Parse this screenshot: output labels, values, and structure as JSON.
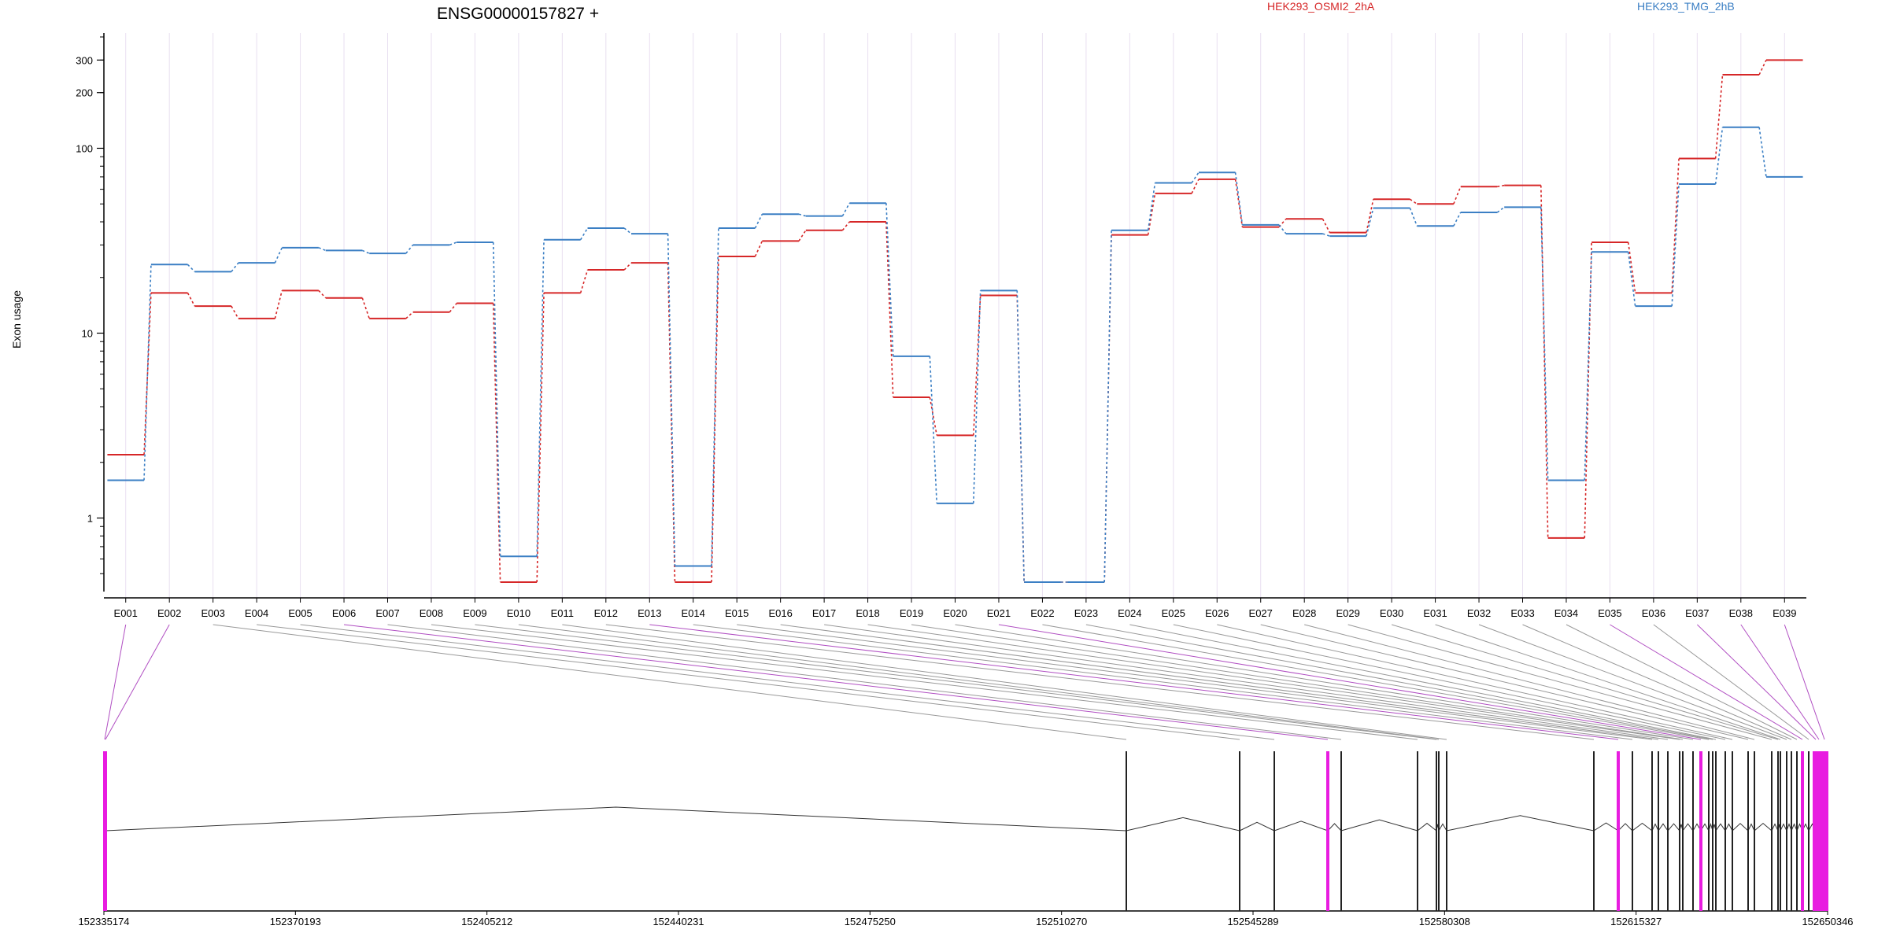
{
  "chart_data": {
    "type": "line",
    "title": "ENSG00000157827 +",
    "ylabel": "Exon usage",
    "yscale": "log",
    "ylim": [
      0.45,
      420
    ],
    "yticks": [
      "1",
      "10",
      "100",
      "200",
      "300"
    ],
    "yticks_values": [
      1,
      10,
      100,
      200,
      300
    ],
    "categories": [
      "E001",
      "E002",
      "E003",
      "E004",
      "E005",
      "E006",
      "E007",
      "E008",
      "E009",
      "E010",
      "E011",
      "E012",
      "E013",
      "E014",
      "E015",
      "E016",
      "E017",
      "E018",
      "E019",
      "E020",
      "E021",
      "E022",
      "E023",
      "E024",
      "E025",
      "E026",
      "E027",
      "E028",
      "E029",
      "E030",
      "E031",
      "E032",
      "E033",
      "E034",
      "E035",
      "E036",
      "E037",
      "E038",
      "E039"
    ],
    "series": [
      {
        "name": "HEK293_OSMI2_2hA",
        "color": "#d62728",
        "values": [
          2.2,
          16.5,
          14,
          12,
          17,
          15.5,
          12,
          13,
          14.5,
          0.45,
          16.5,
          22,
          24,
          0.45,
          26,
          31.5,
          36,
          40,
          4.5,
          2.8,
          16,
          0.45,
          0.45,
          34,
          57,
          68,
          37.5,
          41.5,
          35,
          53,
          50,
          62,
          63,
          0.78,
          31,
          16.5,
          88,
          250,
          300
        ]
      },
      {
        "name": "HEK293_TMG_2hB",
        "color": "#3b7fc4",
        "values": [
          1.6,
          23.5,
          21.5,
          24,
          29,
          28,
          27,
          30,
          31,
          0.62,
          32,
          37,
          34.5,
          0.55,
          37,
          44,
          43,
          50.5,
          7.5,
          1.2,
          17,
          0.45,
          0.45,
          36,
          65,
          74,
          38.5,
          34.5,
          33.5,
          47.5,
          38,
          45,
          48,
          1.6,
          27.5,
          14,
          64,
          130,
          70
        ]
      }
    ],
    "genome_axis": {
      "ticks": [
        "152335174",
        "152370193",
        "152405212",
        "152440231",
        "152475250",
        "152510270",
        "152545289",
        "152580308",
        "152615327",
        "152650346"
      ],
      "tick_values": [
        152335174,
        152370193,
        152405212,
        152440231,
        152475250,
        152510270,
        152545289,
        152580308,
        152615327,
        152650346
      ]
    },
    "grid": true,
    "legend": "top"
  }
}
